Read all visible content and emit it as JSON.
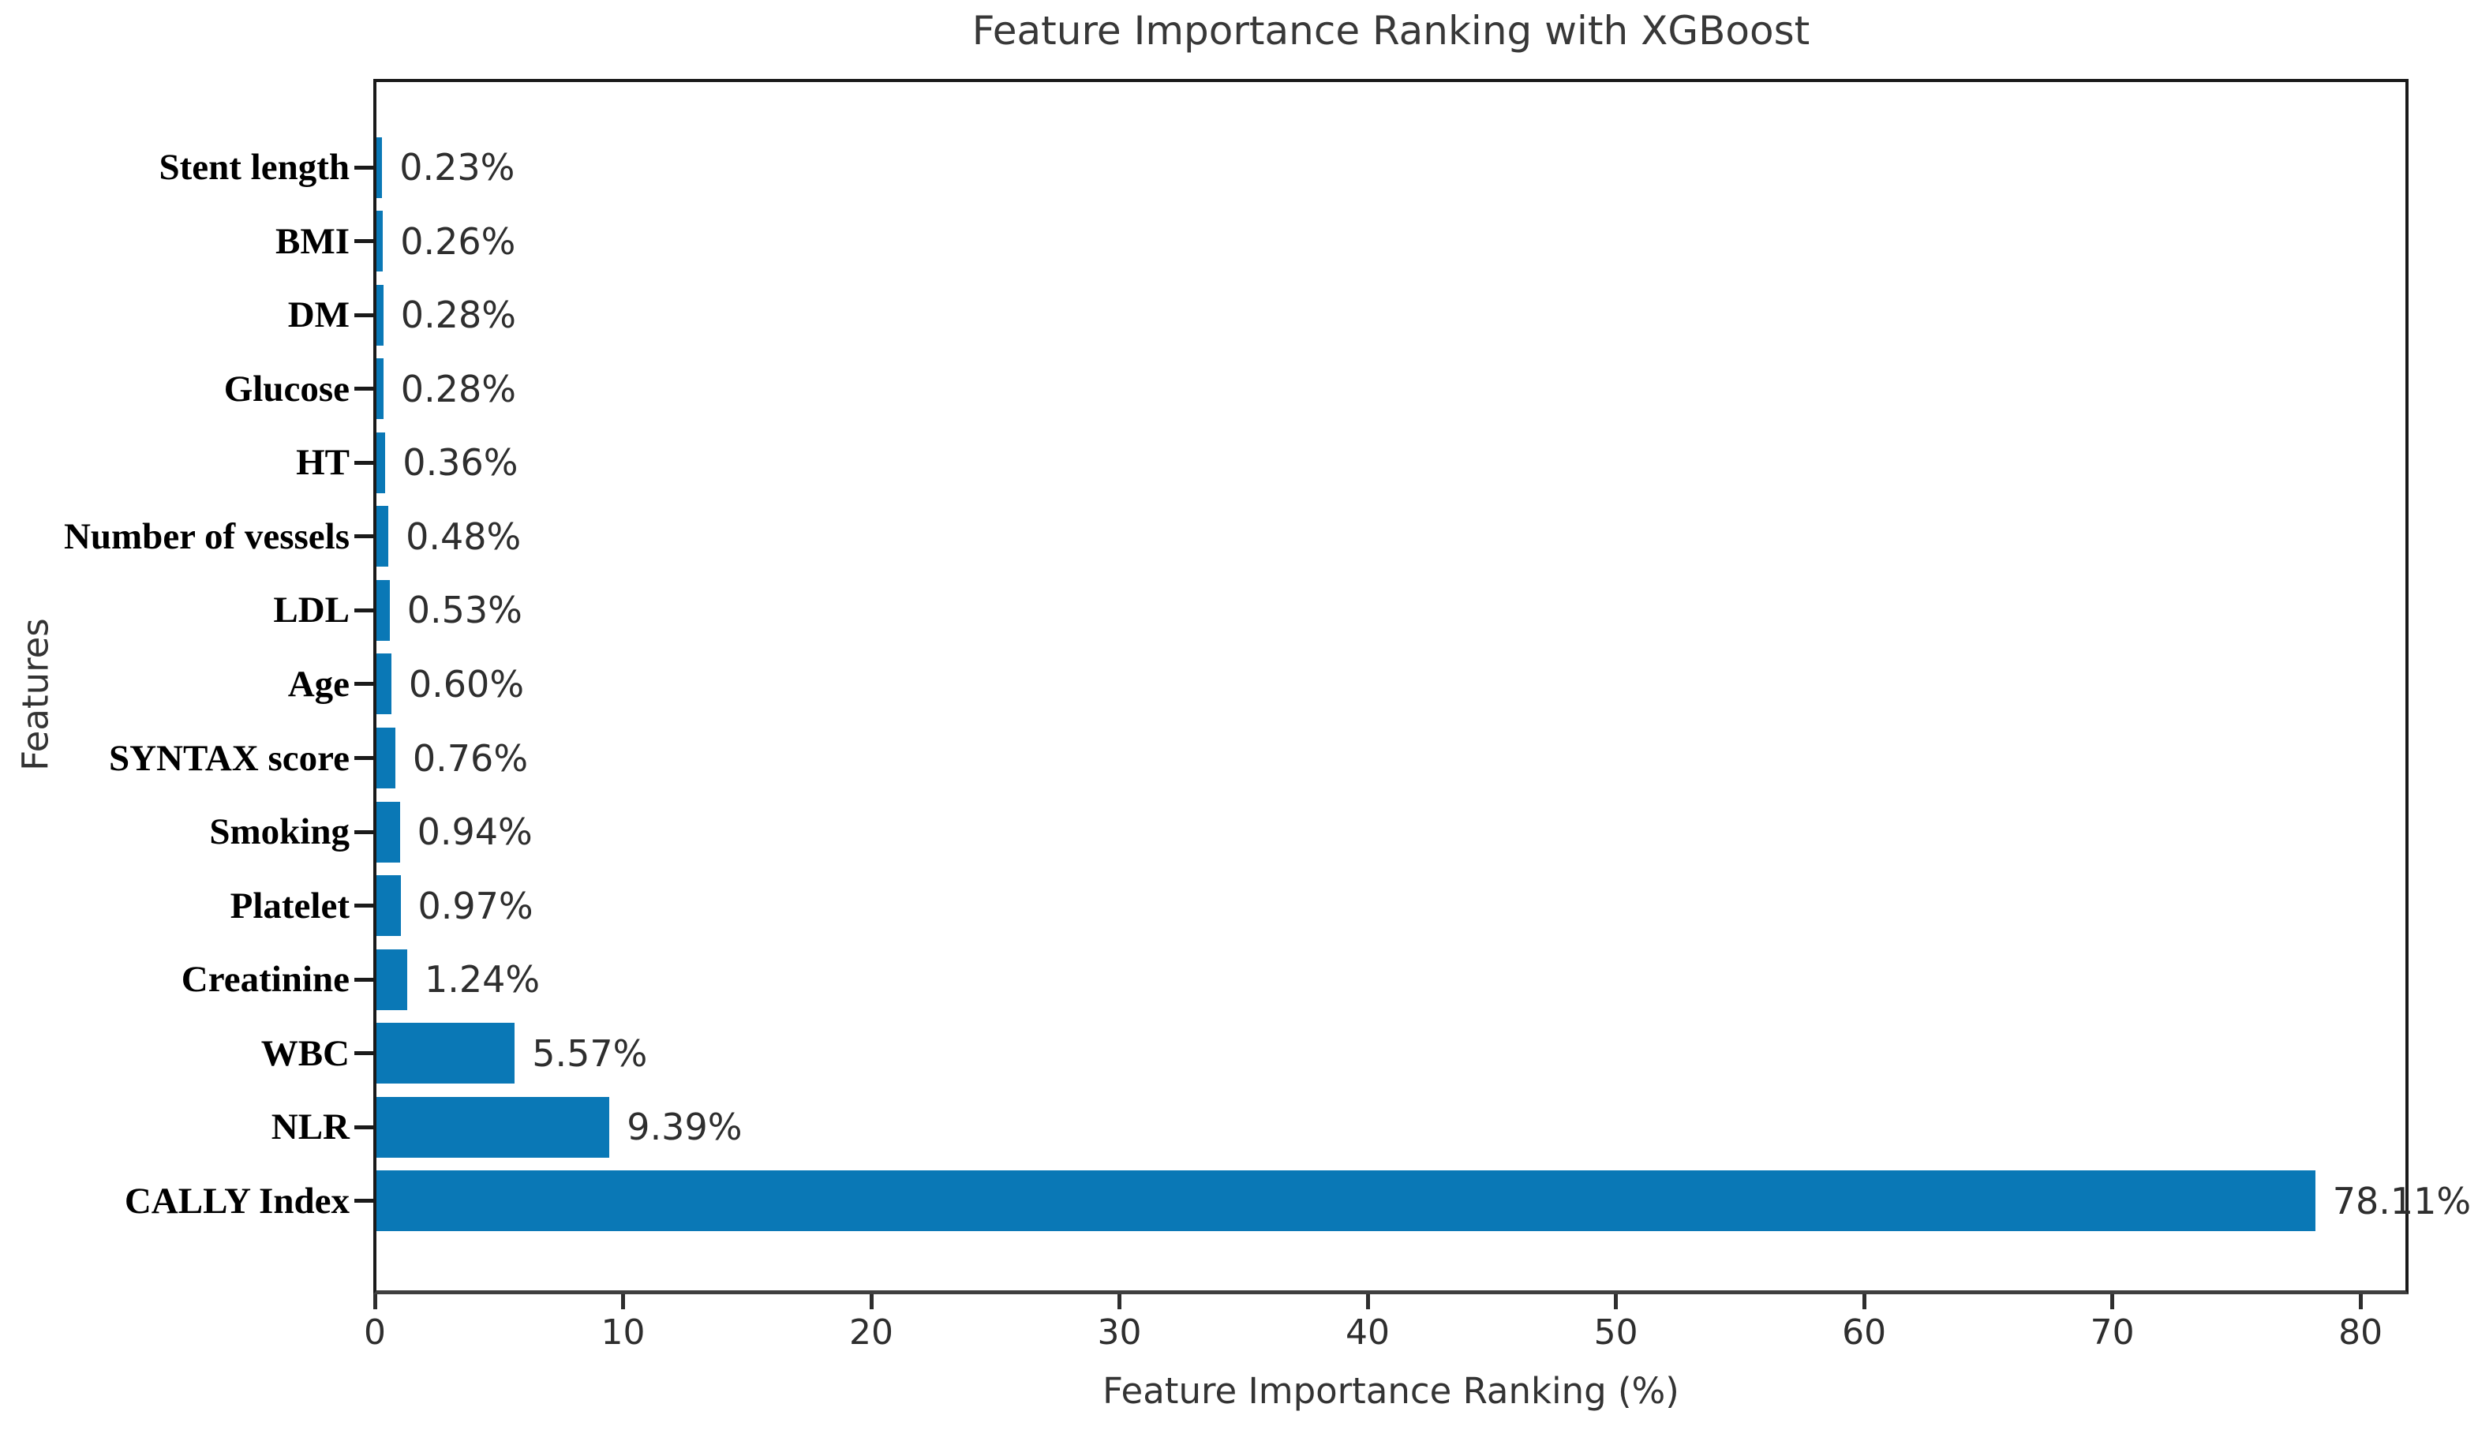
{
  "chart_data": {
    "type": "bar",
    "orientation": "horizontal",
    "title": "Feature Importance Ranking with XGBoost",
    "xlabel": "Feature Importance Ranking (%)",
    "ylabel": "Features",
    "categories": [
      "Stent length",
      "BMI",
      "DM",
      "Glucose",
      "HT",
      "Number of vessels",
      "LDL",
      "Age",
      "SYNTAX score",
      "Smoking",
      "Platelet",
      "Creatinine",
      "WBC",
      "NLR",
      "CALLY Index"
    ],
    "values": [
      0.23,
      0.26,
      0.28,
      0.28,
      0.36,
      0.48,
      0.53,
      0.6,
      0.76,
      0.94,
      0.97,
      1.24,
      5.57,
      9.39,
      78.11
    ],
    "value_labels": [
      "0.23%",
      "0.26%",
      "0.28%",
      "0.28%",
      "0.36%",
      "0.48%",
      "0.53%",
      "0.60%",
      "0.76%",
      "0.94%",
      "0.97%",
      "1.24%",
      "5.57%",
      "9.39%",
      "78.11%"
    ],
    "xticks": [
      0,
      10,
      20,
      30,
      40,
      50,
      60,
      70,
      80
    ],
    "xlim": [
      0,
      82
    ],
    "grid": false,
    "legend_position": "none",
    "bar_color": "#0a78b6",
    "axis_color": "#1a1a1a",
    "text_color": "#2e2e2e"
  }
}
